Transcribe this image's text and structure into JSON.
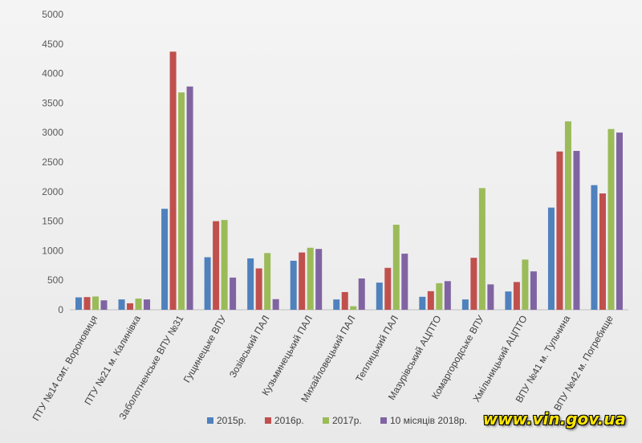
{
  "chart_data": {
    "type": "bar",
    "categories": [
      "ПТУ №14 смт. Вороновиця",
      "ПТУ №21 м. Калинівка",
      "Заболотненське ВПУ №31",
      "Гущинецьке ВПУ",
      "Зозівський ПАЛ",
      "Кузьминецький ПАЛ",
      "Михайловецький ПАЛ",
      "Теплицький ПАЛ",
      "Мазурівський АЦПТО",
      "Комаргородське ВПУ",
      "Хмільницький АЦПТО",
      "ВПУ №41 м. Тульчина",
      "ВПУ №42 м. Погребище"
    ],
    "series": [
      {
        "name": "2015р.",
        "color": "#4f81bd",
        "values": [
          210,
          175,
          1710,
          890,
          870,
          830,
          175,
          460,
          220,
          175,
          310,
          1730,
          2110
        ]
      },
      {
        "name": "2016р.",
        "color": "#c0504d",
        "values": [
          215,
          110,
          4370,
          1500,
          700,
          970,
          300,
          710,
          315,
          880,
          470,
          2680,
          1970
        ]
      },
      {
        "name": "2017р.",
        "color": "#9bbb59",
        "values": [
          225,
          190,
          3680,
          1520,
          960,
          1050,
          60,
          1440,
          450,
          2060,
          850,
          3190,
          3060
        ]
      },
      {
        "name": "10 місяців 2018р.",
        "color": "#8064a2",
        "values": [
          160,
          175,
          3780,
          545,
          180,
          1030,
          530,
          950,
          485,
          430,
          650,
          2690,
          3000
        ]
      }
    ],
    "ylim": [
      0,
      5000
    ],
    "yticks": [
      0,
      500,
      1000,
      1500,
      2000,
      2500,
      3000,
      3500,
      4000,
      4500,
      5000
    ],
    "grid": false,
    "legend_position": "bottom"
  },
  "watermark": "www.vin.gov.ua"
}
